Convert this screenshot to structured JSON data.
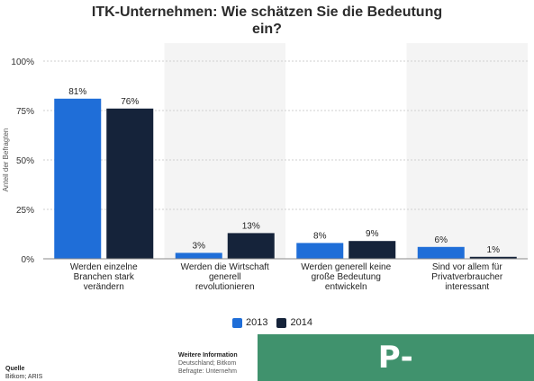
{
  "title": "ITK-Unternehmen: Wie schätzen Sie die Bedeutung\nein?",
  "colors": {
    "series_2013": "#1f6ed8",
    "series_2014": "#15233a",
    "watermark_bg": "#0b6b3a"
  },
  "legend": {
    "label_2013": "2013",
    "label_2014": "2014"
  },
  "footer": {
    "source_heading": "Quelle",
    "source_text": "Bitkom; ARIS",
    "info_heading": "Weitere Information",
    "info_line1": "Deutschland; Bitkom",
    "info_line2": "Befragte: Unternehm"
  },
  "watermark": "P-MBuilders.com",
  "chart_data": {
    "type": "bar",
    "categories": [
      "Werden einzelne Branchen stark verändern",
      "Werden die Wirtschaft generell revolutionieren",
      "Werden generell keine große Bedeutung entwickeln",
      "Sind vor allem für Privatverbraucher interessant"
    ],
    "category_lines": [
      [
        "Werden einzelne",
        "Branchen stark",
        "verändern"
      ],
      [
        "Werden die Wirtschaft",
        "generell",
        "revolutionieren"
      ],
      [
        "Werden generell keine",
        "große Bedeutung",
        "entwickeln"
      ],
      [
        "Sind vor allem für",
        "Privatverbraucher",
        "interessant"
      ]
    ],
    "series": [
      {
        "name": "2013",
        "values": [
          81,
          3,
          8,
          6
        ],
        "labels": [
          "81%",
          "3%",
          "8%",
          "6%"
        ]
      },
      {
        "name": "2014",
        "values": [
          76,
          13,
          9,
          1
        ],
        "labels": [
          "76%",
          "13%",
          "9%",
          "1%"
        ]
      }
    ],
    "ylabel": "Anteil der Befragten",
    "ylim": [
      0,
      100
    ],
    "yticks": [
      0,
      25,
      50,
      75,
      100
    ],
    "ytick_labels": [
      "0%",
      "25%",
      "50%",
      "75%",
      "100%"
    ],
    "grid": true,
    "legend_position": "bottom-center"
  }
}
